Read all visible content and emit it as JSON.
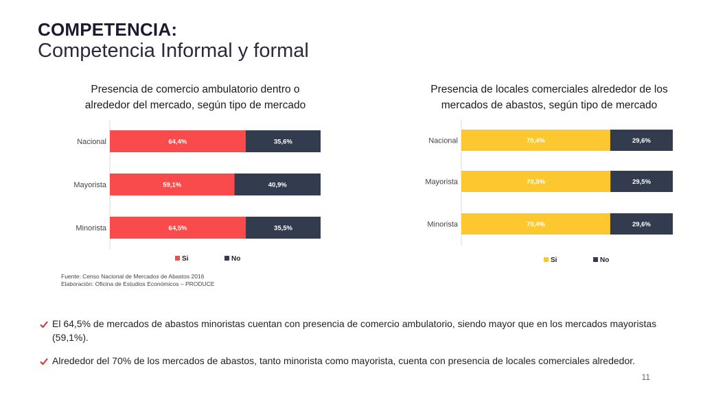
{
  "header": {
    "title": "COMPETENCIA:",
    "subtitle": "Competencia Informal y formal"
  },
  "chart_data": [
    {
      "type": "bar",
      "orientation": "horizontal",
      "stacked": true,
      "title": "Presencia de comercio ambulatorio dentro o alrededor del mercado, según tipo de mercado",
      "categories": [
        "Nacional",
        "Mayorista",
        "Minorista"
      ],
      "series": [
        {
          "name": "Si",
          "values": [
            64.4,
            59.1,
            64.5
          ],
          "labels": [
            "64,4%",
            "59,1%",
            "64,5%"
          ],
          "color": "#f94b4b"
        },
        {
          "name": "No",
          "values": [
            35.6,
            40.9,
            35.5
          ],
          "labels": [
            "35,6%",
            "40,9%",
            "35,5%"
          ],
          "color": "#333c4e"
        }
      ],
      "xlim": [
        0,
        100
      ],
      "legend": "bottom",
      "grid": false
    },
    {
      "type": "bar",
      "orientation": "horizontal",
      "stacked": true,
      "title": "Presencia de locales comerciales alrededor de los mercados de abastos, según tipo de mercado",
      "categories": [
        "Nacional",
        "Mayorista",
        "Minorista"
      ],
      "series": [
        {
          "name": "Si",
          "values": [
            70.4,
            70.5,
            70.4
          ],
          "labels": [
            "70,4%",
            "70,5%",
            "70,4%"
          ],
          "color": "#fdc82f"
        },
        {
          "name": "No",
          "values": [
            29.6,
            29.5,
            29.6
          ],
          "labels": [
            "29,6%",
            "29,5%",
            "29,6%"
          ],
          "color": "#333c4e"
        }
      ],
      "xlim": [
        0,
        100
      ],
      "legend": "bottom",
      "grid": false
    }
  ],
  "source": {
    "line1": "Fuente: Censo Nacional de Mercados de Abastos 2016",
    "line2": "Elaboración: Oficina de Estudios Económicos – PRODUCE"
  },
  "bullets": [
    "El 64,5% de mercados de abastos minoristas cuentan con presencia de comercio ambulatorio, siendo mayor que en los mercados mayoristas (59,1%).",
    "Alrededor del 70% de los mercados de abastos, tanto minorista como mayorista, cuenta con presencia de locales comerciales alrededor."
  ],
  "colors": {
    "check": "#d32f2f"
  },
  "page_number": "11"
}
